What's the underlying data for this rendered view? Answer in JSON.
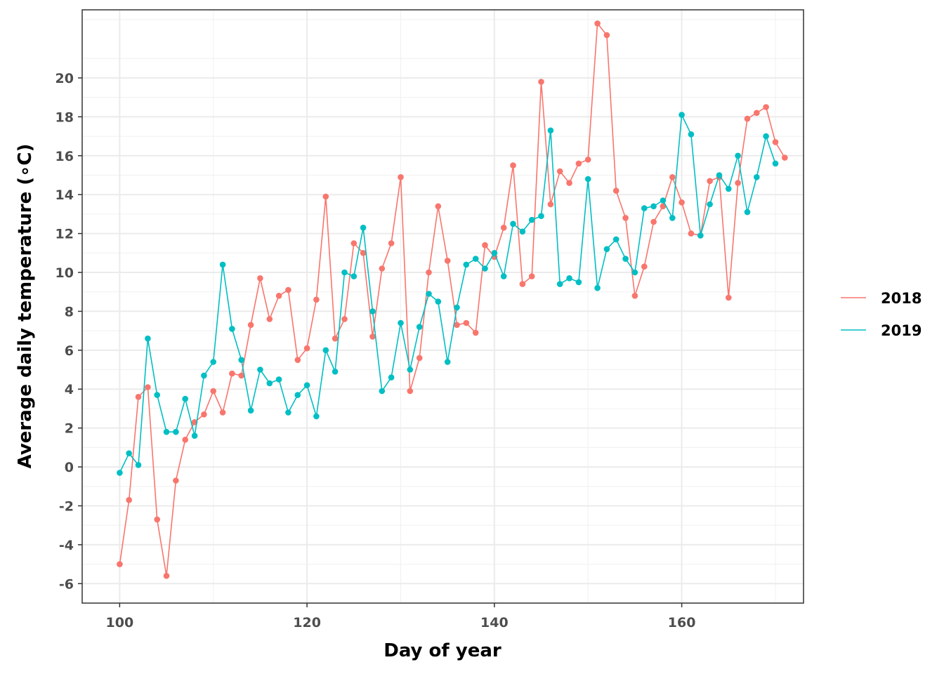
{
  "chart_data": {
    "type": "line",
    "xlabel": "Day of year",
    "ylabel": "Average daily temperature  (∘C)",
    "xlim": [
      96,
      173
    ],
    "ylim": [
      -7,
      23.5
    ],
    "x_ticks": [
      100,
      120,
      140,
      160
    ],
    "y_ticks": [
      -6,
      -4,
      -2,
      0,
      2,
      4,
      6,
      8,
      10,
      12,
      14,
      16,
      18,
      20
    ],
    "grid": true,
    "legend_position": "right",
    "series": [
      {
        "name": "2018",
        "color": "#F8766D",
        "x": [
          100,
          101,
          102,
          103,
          104,
          105,
          106,
          107,
          108,
          109,
          110,
          111,
          112,
          113,
          114,
          115,
          116,
          117,
          118,
          119,
          120,
          121,
          122,
          123,
          124,
          125,
          126,
          127,
          128,
          129,
          130,
          131,
          132,
          133,
          134,
          135,
          136,
          137,
          138,
          139,
          140,
          141,
          142,
          143,
          144,
          145,
          146,
          147,
          148,
          149,
          150,
          151,
          152,
          153,
          154,
          155,
          156,
          157,
          158,
          159,
          160,
          161,
          162,
          163,
          164,
          165,
          166,
          167,
          168,
          169,
          170,
          171
        ],
        "values": [
          -5.0,
          -1.7,
          3.6,
          4.1,
          -2.7,
          -5.6,
          -0.7,
          1.4,
          2.3,
          2.7,
          3.9,
          2.8,
          4.8,
          4.7,
          7.3,
          9.7,
          7.6,
          8.8,
          9.1,
          5.5,
          6.1,
          8.6,
          13.9,
          6.6,
          7.6,
          11.5,
          11.0,
          6.7,
          10.2,
          11.5,
          14.9,
          3.9,
          5.6,
          10.0,
          13.4,
          10.6,
          7.3,
          7.4,
          6.9,
          11.4,
          10.8,
          12.3,
          15.5,
          9.4,
          9.8,
          19.8,
          13.5,
          15.2,
          14.6,
          15.6,
          15.8,
          22.8,
          22.2,
          14.2,
          12.8,
          8.8,
          10.3,
          12.6,
          13.4,
          14.9,
          13.6,
          12.0,
          11.9,
          14.7,
          14.9,
          8.7,
          14.6,
          17.9,
          18.2,
          18.5,
          16.7,
          15.9
        ]
      },
      {
        "name": "2019",
        "color": "#00BFC4",
        "x": [
          100,
          101,
          102,
          103,
          104,
          105,
          106,
          107,
          108,
          109,
          110,
          111,
          112,
          113,
          114,
          115,
          116,
          117,
          118,
          119,
          120,
          121,
          122,
          123,
          124,
          125,
          126,
          127,
          128,
          129,
          130,
          131,
          132,
          133,
          134,
          135,
          136,
          137,
          138,
          139,
          140,
          141,
          142,
          143,
          144,
          145,
          146,
          147,
          148,
          149,
          150,
          151,
          152,
          153,
          154,
          155,
          156,
          157,
          158,
          159,
          160,
          161,
          162,
          163,
          164,
          165,
          166,
          167,
          168,
          169,
          170
        ],
        "values": [
          -0.3,
          0.7,
          0.1,
          6.6,
          3.7,
          1.8,
          1.8,
          3.5,
          1.6,
          4.7,
          5.4,
          10.4,
          7.1,
          5.5,
          2.9,
          5.0,
          4.3,
          4.5,
          2.8,
          3.7,
          4.2,
          2.6,
          6.0,
          4.9,
          10.0,
          9.8,
          12.3,
          8.0,
          3.9,
          4.6,
          7.4,
          5.0,
          7.2,
          8.9,
          8.5,
          5.4,
          8.2,
          10.4,
          10.7,
          10.2,
          11.0,
          9.8,
          12.5,
          12.1,
          12.7,
          12.9,
          17.3,
          9.4,
          9.7,
          9.5,
          14.8,
          9.2,
          11.2,
          11.7,
          10.7,
          10.0,
          13.3,
          13.4,
          13.7,
          12.8,
          18.1,
          17.1,
          11.9,
          13.5,
          15.0,
          14.3,
          16.0,
          13.1,
          14.9,
          17.0,
          15.6
        ]
      }
    ]
  }
}
